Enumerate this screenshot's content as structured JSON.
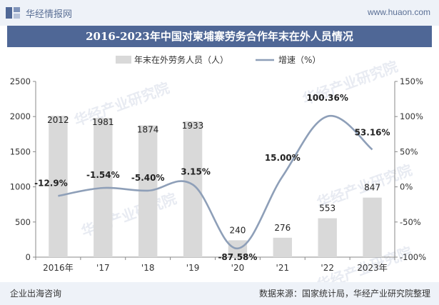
{
  "header": {
    "site_name": "华经情报网",
    "site_url": "www.huaon.com",
    "logo_icon": "huajing-logo-icon"
  },
  "title": "2016-2023年中国对柬埔寨劳务合作年末在外人员情况",
  "footer": {
    "left": "企业出海咨询",
    "right": "数据来源：国家统计局，华经产业研究院整理"
  },
  "watermark": "华经产业研究院",
  "chart_data": {
    "type": "bar+line",
    "categories": [
      "2016年",
      "'17",
      "'18",
      "'19",
      "'20",
      "'21",
      "'22",
      "2023年"
    ],
    "series": [
      {
        "name": "年末在外劳务人员（人）",
        "type": "bar",
        "axis": "left",
        "color": "#d9d9d9",
        "values": [
          2012,
          1981,
          1874,
          1933,
          240,
          276,
          553,
          847
        ],
        "labels": [
          "2012",
          "1981",
          "1874",
          "1933",
          "240",
          "276",
          "553",
          "847"
        ]
      },
      {
        "name": "增速（%）",
        "type": "line",
        "axis": "right",
        "color": "#8e9fb8",
        "values": [
          -12.9,
          -1.54,
          -5.4,
          3.15,
          -87.58,
          15.0,
          100.36,
          53.16
        ],
        "labels": [
          "-12.9%",
          "-1.54%",
          "-5.40%",
          "3.15%",
          "-87.58%",
          "15.00%",
          "100.36%",
          "53.16%"
        ]
      }
    ],
    "y_left": {
      "min": 0,
      "max": 2500,
      "ticks": [
        "0",
        "500",
        "1000",
        "1500",
        "2000",
        "2500"
      ],
      "tick_values": [
        0,
        500,
        1000,
        1500,
        2000,
        2500
      ]
    },
    "y_right": {
      "min": -100,
      "max": 150,
      "ticks": [
        "-100%",
        "-50%",
        "0%",
        "50%",
        "100%",
        "150%"
      ],
      "tick_values": [
        -100,
        -50,
        0,
        50,
        100,
        150
      ]
    },
    "legend_position": "top-center",
    "grid": false
  }
}
